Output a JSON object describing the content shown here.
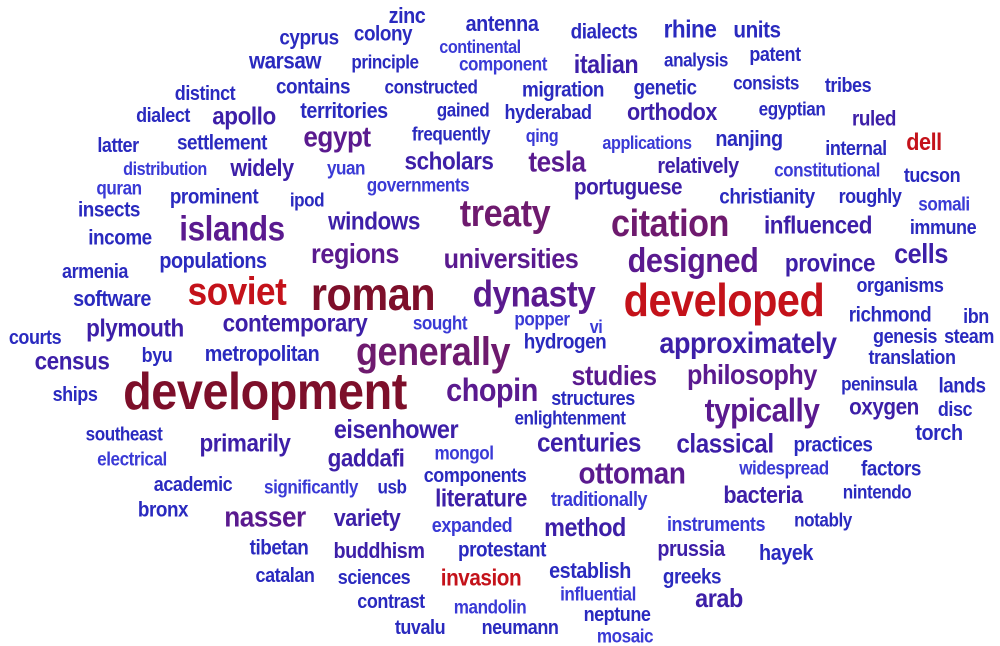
{
  "palette": {
    "blue_light": "#3a3ad6",
    "blue": "#2a2abf",
    "indigo": "#3d1fa8",
    "purple": "#5a1a8f",
    "plum": "#6e1a6e",
    "maroon": "#7d0f2a",
    "red": "#c4121a"
  },
  "words": [
    "zinc",
    "cyprus",
    "colony",
    "antenna",
    "dialects",
    "rhine",
    "units",
    "continental",
    "warsaw",
    "principle",
    "component",
    "italian",
    "analysis",
    "patent",
    "distinct",
    "contains",
    "constructed",
    "migration",
    "genetic",
    "consists",
    "tribes",
    "dialect",
    "apollo",
    "territories",
    "gained",
    "hyderabad",
    "orthodox",
    "egyptian",
    "ruled",
    "latter",
    "settlement",
    "egypt",
    "frequently",
    "qing",
    "applications",
    "nanjing",
    "internal",
    "dell",
    "distribution",
    "widely",
    "yuan",
    "scholars",
    "tesla",
    "relatively",
    "constitutional",
    "quran",
    "governments",
    "portuguese",
    "tucson",
    "prominent",
    "ipod",
    "christianity",
    "roughly",
    "insects",
    "treaty",
    "citation",
    "somali",
    "income",
    "islands",
    "windows",
    "influenced",
    "immune",
    "regions",
    "populations",
    "universities",
    "designed",
    "province",
    "cells",
    "armenia",
    "organisms",
    "software",
    "soviet",
    "roman",
    "dynasty",
    "developed",
    "plymouth",
    "contemporary",
    "sought",
    "popper",
    "vi",
    "richmond",
    "ibn",
    "courts",
    "genesis",
    "steam",
    "census",
    "byu",
    "metropolitan",
    "generally",
    "hydrogen",
    "approximately",
    "translation",
    "development",
    "chopin",
    "studies",
    "philosophy",
    "peninsula",
    "lands",
    "ships",
    "structures",
    "typically",
    "oxygen",
    "disc",
    "enlightenment",
    "southeast",
    "primarily",
    "eisenhower",
    "centuries",
    "classical",
    "practices",
    "torch",
    "electrical",
    "gaddafi",
    "mongol",
    "ottoman",
    "factors",
    "components",
    "widespread",
    "academic",
    "significantly",
    "usb",
    "literature",
    "bacteria",
    "nintendo",
    "bronx",
    "nasser",
    "variety",
    "traditionally",
    "notably",
    "expanded",
    "method",
    "instruments",
    "tibetan",
    "buddhism",
    "protestant",
    "prussia",
    "hayek",
    "catalan",
    "sciences",
    "invasion",
    "establish",
    "greeks",
    "contrast",
    "influential",
    "arab",
    "mandolin",
    "neptune",
    "tuvalu",
    "neumann",
    "mosaic"
  ]
}
